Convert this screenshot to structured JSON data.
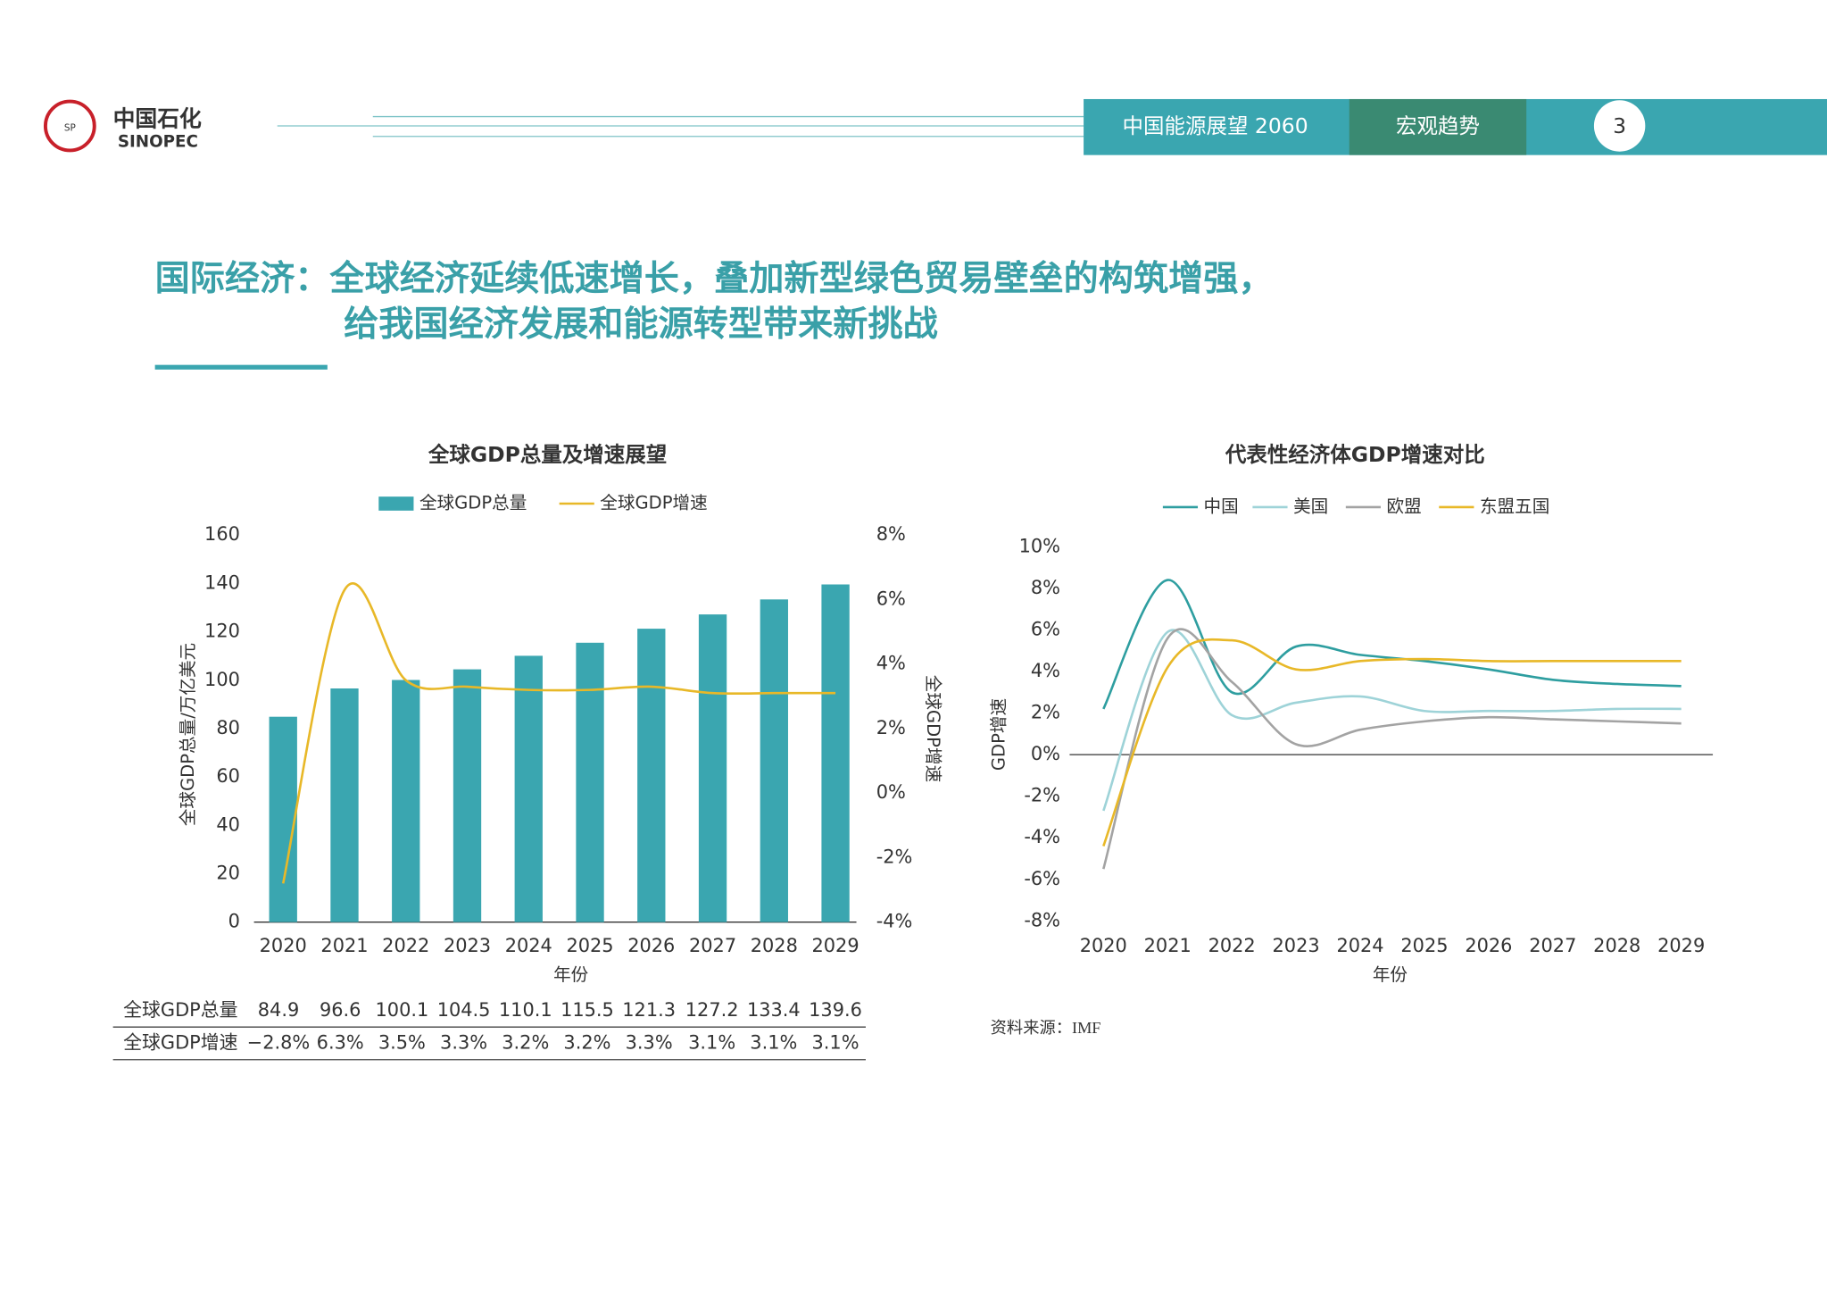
{
  "header": {
    "logo_cn": "中国石化",
    "logo_en": "SINOPEC",
    "report": "中国能源展望 2060",
    "section": "宏观趋势",
    "page": "3"
  },
  "title": {
    "line1": "国际经济：全球经济延续低速增长，叠加新型绿色贸易壁垒的构筑增强，",
    "line2": "给我国经济发展和能源转型带来新挑战"
  },
  "chart_data": [
    {
      "type": "bar-line",
      "title": "全球GDP总量及增速展望",
      "x_label": "年份",
      "y_label": "全球GDP总量/万亿美元",
      "y2_label": "全球GDP增速",
      "categories": [
        "2020",
        "2021",
        "2022",
        "2023",
        "2024",
        "2025",
        "2026",
        "2027",
        "2028",
        "2029"
      ],
      "series": [
        {
          "name": "全球GDP总量",
          "type": "bar",
          "color": "#3aa6b0",
          "values": [
            84.9,
            96.6,
            100.1,
            104.5,
            110.1,
            115.5,
            121.3,
            127.2,
            133.4,
            139.6
          ]
        },
        {
          "name": "全球GDP增速",
          "type": "line",
          "axis": "y2",
          "color": "#e8b828",
          "values": [
            -2.8,
            6.3,
            3.5,
            3.3,
            3.2,
            3.2,
            3.3,
            3.1,
            3.1,
            3.1
          ]
        }
      ],
      "ylim": [
        0,
        160
      ],
      "yticks": [
        0,
        20,
        40,
        60,
        80,
        100,
        120,
        140,
        160
      ],
      "y2lim": [
        -4,
        8
      ],
      "y2ticks": [
        {
          "value": -4,
          "label": "-4%"
        },
        {
          "value": -2,
          "label": "-2%"
        },
        {
          "value": 0,
          "label": "0%"
        },
        {
          "value": 2,
          "label": "2%"
        },
        {
          "value": 4,
          "label": "4%"
        },
        {
          "value": 6,
          "label": "6%"
        },
        {
          "value": 8,
          "label": "8%"
        }
      ]
    },
    {
      "type": "line",
      "title": "代表性经济体GDP增速对比",
      "x_label": "年份",
      "y_label": "GDP增速",
      "categories": [
        "2020",
        "2021",
        "2022",
        "2023",
        "2024",
        "2025",
        "2026",
        "2027",
        "2028",
        "2029"
      ],
      "series": [
        {
          "name": "中国",
          "color": "#2e9ea0",
          "values": [
            2.2,
            8.4,
            3.0,
            5.2,
            4.8,
            4.5,
            4.1,
            3.6,
            3.4,
            3.3
          ]
        },
        {
          "name": "美国",
          "color": "#9ed3d8",
          "values": [
            -2.7,
            5.9,
            1.9,
            2.5,
            2.8,
            2.1,
            2.1,
            2.1,
            2.2,
            2.2
          ]
        },
        {
          "name": "欧盟",
          "color": "#a3a3a3",
          "values": [
            -5.5,
            5.6,
            3.5,
            0.5,
            1.2,
            1.6,
            1.8,
            1.7,
            1.6,
            1.5
          ]
        },
        {
          "name": "东盟五国",
          "color": "#e8b828",
          "values": [
            -4.4,
            4.2,
            5.5,
            4.1,
            4.5,
            4.6,
            4.5,
            4.5,
            4.5,
            4.5
          ]
        }
      ],
      "ylim": [
        -8,
        10
      ],
      "yticks": [
        {
          "value": -8,
          "label": "-8%"
        },
        {
          "value": -6,
          "label": "-6%"
        },
        {
          "value": -4,
          "label": "-4%"
        },
        {
          "value": -2,
          "label": "-2%"
        },
        {
          "value": 0,
          "label": "0%"
        },
        {
          "value": 2,
          "label": "2%"
        },
        {
          "value": 4,
          "label": "4%"
        },
        {
          "value": 6,
          "label": "6%"
        },
        {
          "value": 8,
          "label": "8%"
        },
        {
          "value": 10,
          "label": "10%"
        }
      ]
    }
  ],
  "table": {
    "rows": [
      {
        "label": "全球GDP总量",
        "cells": [
          "84.9",
          "96.6",
          "100.1",
          "104.5",
          "110.1",
          "115.5",
          "121.3",
          "127.2",
          "133.4",
          "139.6"
        ]
      },
      {
        "label": "全球GDP增速",
        "cells": [
          "−2.8%",
          "6.3%",
          "3.5%",
          "3.3%",
          "3.2%",
          "3.2%",
          "3.3%",
          "3.1%",
          "3.1%",
          "3.1%"
        ]
      }
    ]
  },
  "source": "资料来源：IMF"
}
